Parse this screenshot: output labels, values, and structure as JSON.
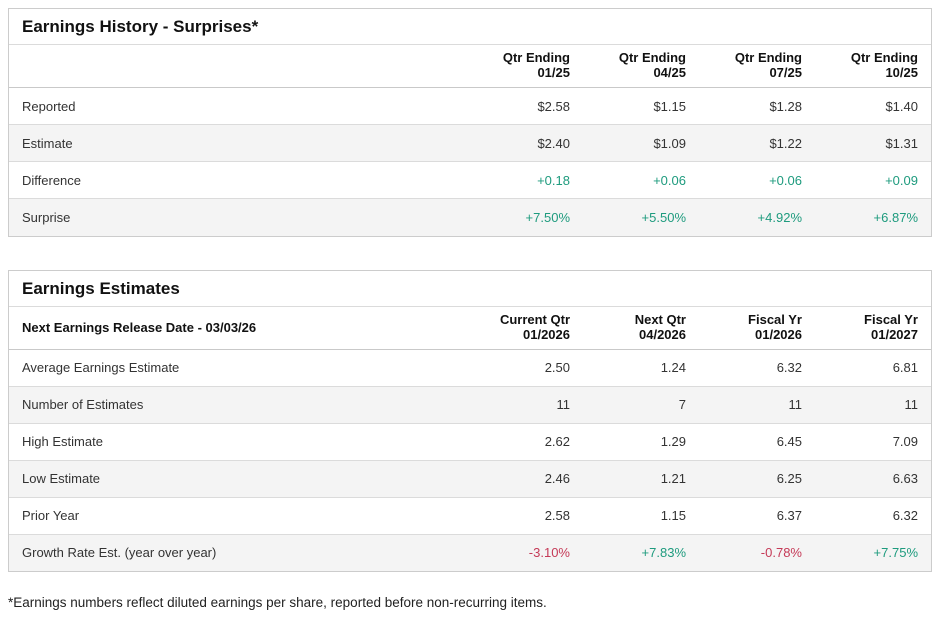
{
  "colors": {
    "positive": "#1E9B7E",
    "negative": "#C53A57",
    "alt-row": "#F4F4F4",
    "panel-border": "#CCCCCC",
    "separator": "#DBDBDB",
    "separator-dark": "#C9C9C9",
    "text": "#333333",
    "heading": "#111111"
  },
  "surprises": {
    "title": "Earnings History - Surprises*",
    "columns": [
      {
        "line1": "Qtr Ending",
        "line2": "01/25"
      },
      {
        "line1": "Qtr Ending",
        "line2": "04/25"
      },
      {
        "line1": "Qtr Ending",
        "line2": "07/25"
      },
      {
        "line1": "Qtr Ending",
        "line2": "10/25"
      }
    ],
    "rows": [
      {
        "label": "Reported",
        "values": [
          "$2.58",
          "$1.15",
          "$1.28",
          "$1.40"
        ]
      },
      {
        "label": "Estimate",
        "values": [
          "$2.40",
          "$1.09",
          "$1.22",
          "$1.31"
        ]
      },
      {
        "label": "Difference",
        "values": [
          "+0.18",
          "+0.06",
          "+0.06",
          "+0.09"
        ]
      },
      {
        "label": "Surprise",
        "values": [
          "+7.50%",
          "+5.50%",
          "+4.92%",
          "+6.87%"
        ]
      }
    ]
  },
  "estimates": {
    "title": "Earnings Estimates",
    "release_label": "Next Earnings Release Date - 03/03/26",
    "columns": [
      {
        "line1": "Current Qtr",
        "line2": "01/2026"
      },
      {
        "line1": "Next Qtr",
        "line2": "04/2026"
      },
      {
        "line1": "Fiscal Yr",
        "line2": "01/2026"
      },
      {
        "line1": "Fiscal Yr",
        "line2": "01/2027"
      }
    ],
    "rows": [
      {
        "label": "Average Earnings Estimate",
        "values": [
          "2.50",
          "1.24",
          "6.32",
          "6.81"
        ]
      },
      {
        "label": "Number of Estimates",
        "values": [
          "11",
          "7",
          "11",
          "11"
        ]
      },
      {
        "label": "High Estimate",
        "values": [
          "2.62",
          "1.29",
          "6.45",
          "7.09"
        ]
      },
      {
        "label": "Low Estimate",
        "values": [
          "2.46",
          "1.21",
          "6.25",
          "6.63"
        ]
      },
      {
        "label": "Prior Year",
        "values": [
          "2.58",
          "1.15",
          "6.37",
          "6.32"
        ]
      },
      {
        "label": "Growth Rate Est. (year over year)",
        "values": [
          "-3.10%",
          "+7.83%",
          "-0.78%",
          "+7.75%"
        ]
      }
    ]
  },
  "footnote": "*Earnings numbers reflect diluted earnings per share, reported before non-recurring items."
}
